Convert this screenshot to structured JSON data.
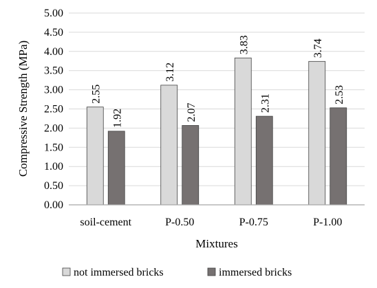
{
  "chart_data": {
    "type": "bar",
    "title": "",
    "xlabel": "Mixtures",
    "ylabel": "Compressive Strength (MPa)",
    "categories": [
      "soil-cement",
      "P-0.50",
      "P-0.75",
      "P-1.00"
    ],
    "ylim": [
      0,
      5
    ],
    "yticks": [
      "0.00",
      "0.50",
      "1.00",
      "1.50",
      "2.00",
      "2.50",
      "3.00",
      "3.50",
      "4.00",
      "4.50",
      "5.00"
    ],
    "grid": true,
    "legend_position": "bottom",
    "series": [
      {
        "name": "not immersed bricks",
        "values": [
          2.55,
          3.12,
          3.83,
          3.74
        ],
        "labels": [
          "2.55",
          "3.12",
          "3.83",
          "3.74"
        ],
        "color": "#d9d9d9"
      },
      {
        "name": "immersed bricks",
        "values": [
          1.92,
          2.07,
          2.31,
          2.53
        ],
        "labels": [
          "1.92",
          "2.07",
          "2.31",
          "2.53"
        ],
        "color": "#767171"
      }
    ]
  }
}
